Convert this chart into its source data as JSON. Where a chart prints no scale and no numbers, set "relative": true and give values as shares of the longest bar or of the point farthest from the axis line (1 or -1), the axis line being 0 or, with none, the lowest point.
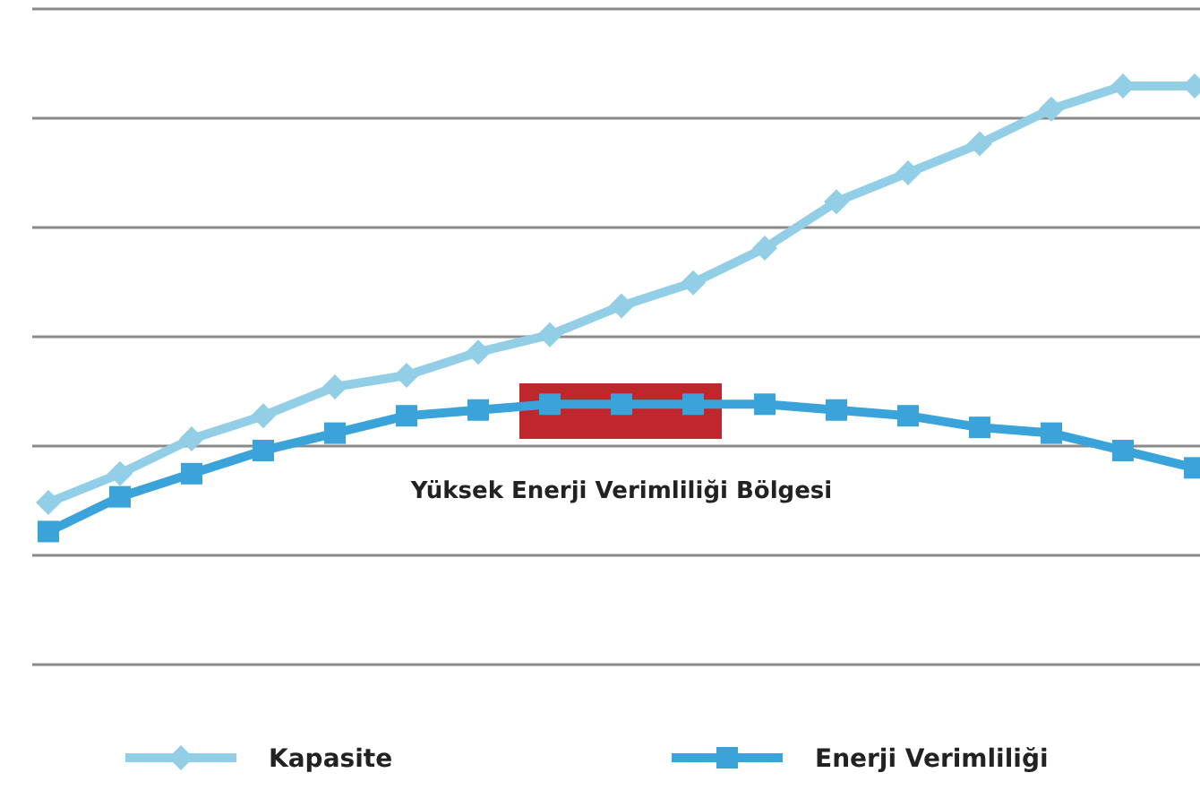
{
  "chart_data": {
    "type": "line",
    "relative": true,
    "grid": true,
    "legend": "bottom",
    "categories": [
      null,
      null,
      null,
      null,
      null,
      null,
      null,
      null,
      null,
      null,
      null,
      null,
      null,
      null,
      null,
      null,
      null
    ],
    "series": [
      {
        "name": "Kapasite",
        "color": "#92cfe6",
        "marker": "diamond",
        "values": [
          0.28,
          0.33,
          0.39,
          0.43,
          0.48,
          0.5,
          0.54,
          0.57,
          0.62,
          0.66,
          0.72,
          0.8,
          0.85,
          0.9,
          0.96,
          1,
          1
        ]
      },
      {
        "name": "Enerji Verimliliği",
        "color": "#3aa3da",
        "marker": "square",
        "values": [
          0.23,
          0.29,
          0.33,
          0.37,
          0.4,
          0.43,
          0.44,
          0.45,
          0.45,
          0.45,
          0.45,
          0.44,
          0.43,
          0.41,
          0.4,
          0.37,
          0.34
        ]
      }
    ],
    "annotations": [
      "Yüksek Enerji Verimliliği Bölgesi"
    ]
  }
}
